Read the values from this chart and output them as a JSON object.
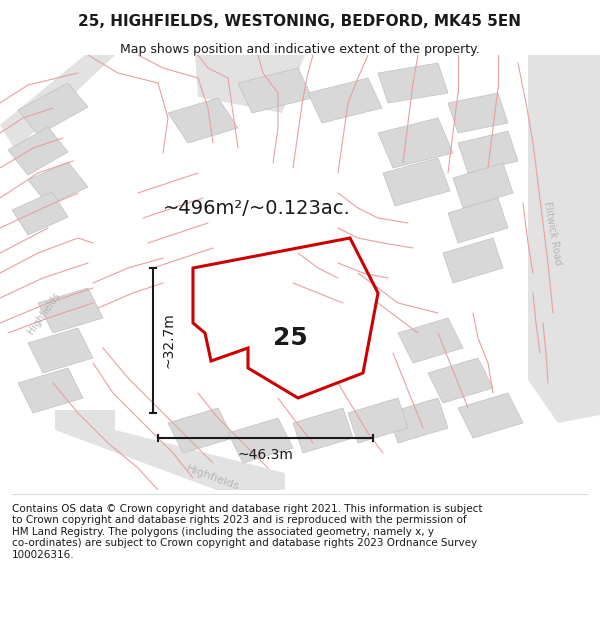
{
  "title": "25, HIGHFIELDS, WESTONING, BEDFORD, MK45 5EN",
  "subtitle": "Map shows position and indicative extent of the property.",
  "area_label": "~496m²/~0.123ac.",
  "number_label": "25",
  "width_label": "~46.3m",
  "height_label": "~32.7m",
  "road_label_left": "Highfields",
  "road_label_bottom": "Highfields",
  "road_label_right": "Flitwick Road",
  "footer_line1": "Contains OS data © Crown copyright and database right 2021. This information is subject",
  "footer_line2": "to Crown copyright and database rights 2023 and is reproduced with the permission of",
  "footer_line3": "HM Land Registry. The polygons (including the associated geometry, namely x, y",
  "footer_line4": "co-ordinates) are subject to Crown copyright and database rights 2023 Ordnance Survey",
  "footer_line5": "100026316.",
  "bg_color": "#f5f5f5",
  "map_bg": "#efefef",
  "road_color": "#e2e2e2",
  "plot_color_edge": "#cc0000",
  "building_fill": "#d8d8d8",
  "building_edge": "#c0c0c0",
  "pink_line_color": "#e8a0a0",
  "dim_line_color": "#1a1a1a",
  "title_fontsize": 11,
  "subtitle_fontsize": 9,
  "area_fontsize": 14,
  "number_fontsize": 18,
  "dim_fontsize": 10,
  "road_fontsize_small": 7,
  "road_fontsize_med": 8,
  "footer_fontsize": 7.5
}
